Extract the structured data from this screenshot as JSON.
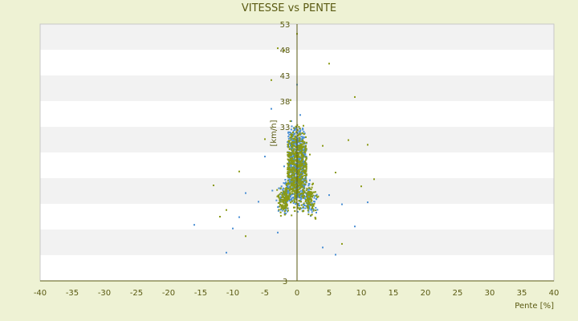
{
  "chart_data": {
    "type": "scatter",
    "title": "VITESSE vs PENTE",
    "xlabel": "Pente [%]",
    "ylabel": "[km/h]",
    "xlim": [
      -40,
      40
    ],
    "ylim": [
      3,
      53
    ],
    "x_ticks": [
      "-40",
      "-35",
      "-30",
      "-25",
      "-20",
      "-15",
      "-10",
      "-5",
      "0",
      "5",
      "10",
      "15",
      "20",
      "25",
      "30",
      "35",
      "40"
    ],
    "y_ticks": [
      "3",
      "8",
      "13",
      "18",
      "23",
      "28",
      "33",
      "38",
      "43",
      "48",
      "53"
    ],
    "y_tick_labels_shown": [
      "3",
      "",
      "",
      "",
      "",
      "",
      "33",
      "38",
      "43",
      "48",
      "53"
    ],
    "grid": "alternating horizontal bands",
    "series": [
      {
        "color": "#4a8fd4",
        "marker": "small square",
        "points_sample": [
          [
            -16,
            13.9
          ],
          [
            -11,
            8.5
          ],
          [
            -10,
            13.2
          ],
          [
            -9,
            15.4
          ],
          [
            -8,
            20.1
          ],
          [
            -6,
            18.4
          ],
          [
            -5,
            27.2
          ],
          [
            -4,
            36.5
          ],
          [
            -3,
            12.4
          ],
          [
            -2,
            25.3
          ],
          [
            -1,
            31.5
          ],
          [
            0,
            41.2
          ],
          [
            0.5,
            35.3
          ],
          [
            1,
            28.4
          ],
          [
            2,
            22.6
          ],
          [
            3,
            16.3
          ],
          [
            4,
            9.5
          ],
          [
            5,
            19.7
          ],
          [
            6,
            8.1
          ],
          [
            7,
            17.9
          ],
          [
            9,
            13.6
          ],
          [
            11,
            18.3
          ]
        ]
      },
      {
        "color": "#8a9a14",
        "marker": "small square",
        "points_sample": [
          [
            -13,
            21.6
          ],
          [
            -12,
            15.5
          ],
          [
            -11,
            16.8
          ],
          [
            -9,
            24.3
          ],
          [
            -8,
            11.7
          ],
          [
            -5,
            30.6
          ],
          [
            -4,
            42.1
          ],
          [
            -3,
            48.3
          ],
          [
            -2,
            47.9
          ],
          [
            -1,
            38.2
          ],
          [
            0,
            51.1
          ],
          [
            1,
            33.2
          ],
          [
            2,
            27.6
          ],
          [
            4,
            29.3
          ],
          [
            5,
            45.3
          ],
          [
            6,
            24.1
          ],
          [
            7,
            10.2
          ],
          [
            8,
            30.4
          ],
          [
            9,
            38.8
          ],
          [
            10,
            21.4
          ],
          [
            11,
            29.5
          ],
          [
            12,
            22.8
          ]
        ]
      }
    ]
  }
}
